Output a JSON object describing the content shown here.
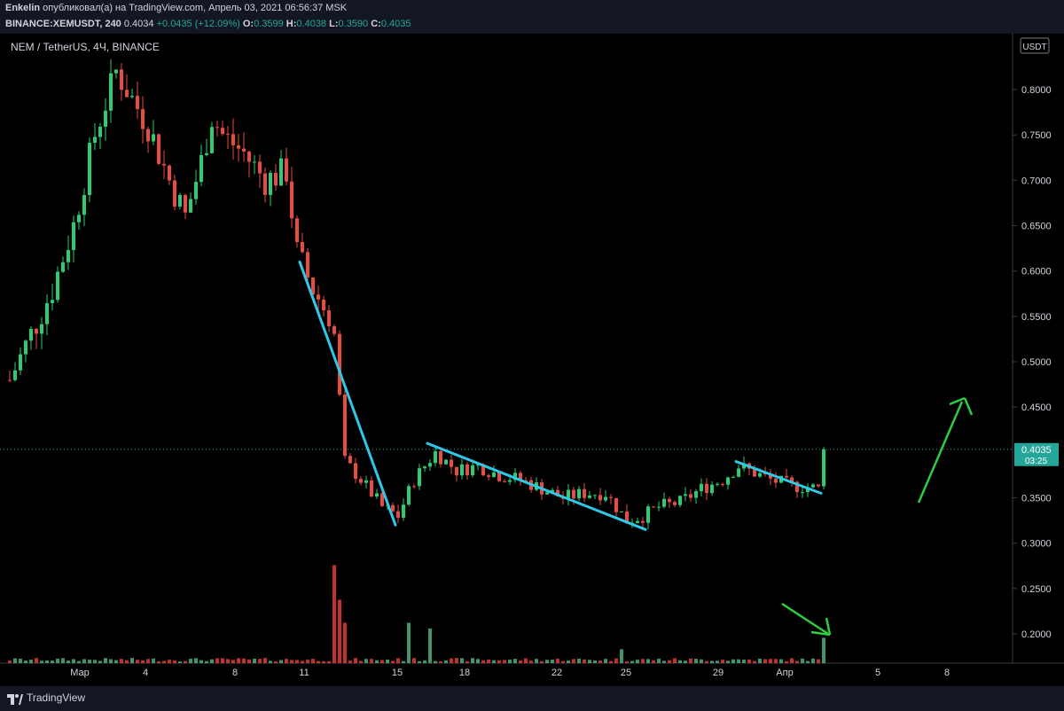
{
  "header": {
    "line1_user": "Enkelin",
    "line1_text": " опубликовал(а) на TradingView.com, Апрель 03, 2021 06:56:37 MSK",
    "symbol": "BINANCE:XEMUSDT, 240",
    "last": "0.4034",
    "change": "+0.0435 (+12.09%)",
    "o_label": "O:",
    "o_value": "0.3599",
    "h_label": "H:",
    "h_value": "0.4038",
    "l_label": "L:",
    "l_value": "0.3590",
    "c_label": "C:",
    "c_value": "0.4035"
  },
  "chart_data": {
    "type": "candlestick",
    "title": "NEM / TetherUS, 4Ч, BINANCE",
    "currency": "USDT",
    "ylim": [
      0.17,
      0.86
    ],
    "y_ticks": [
      "0.8000",
      "0.7500",
      "0.7000",
      "0.6500",
      "0.6000",
      "0.5500",
      "0.5000",
      "0.4500",
      "0.3500",
      "0.3000",
      "0.2500",
      "0.2000"
    ],
    "x_ticks": [
      "Мар",
      "4",
      "8",
      "11",
      "15",
      "18",
      "22",
      "25",
      "29",
      "Апр",
      "5",
      "8"
    ],
    "current_price": "0.4035",
    "countdown": "03:25",
    "price_path": [
      [
        0,
        0.48
      ],
      [
        4,
        0.53
      ],
      [
        8,
        0.58
      ],
      [
        12,
        0.65
      ],
      [
        16,
        0.75
      ],
      [
        20,
        0.82
      ],
      [
        22,
        0.8
      ],
      [
        26,
        0.76
      ],
      [
        30,
        0.7
      ],
      [
        33,
        0.66
      ],
      [
        36,
        0.72
      ],
      [
        38,
        0.77
      ],
      [
        40,
        0.75
      ],
      [
        44,
        0.73
      ],
      [
        48,
        0.7
      ],
      [
        52,
        0.71
      ],
      [
        54,
        0.62
      ],
      [
        57,
        0.58
      ],
      [
        59,
        0.56
      ],
      [
        61,
        0.53
      ],
      [
        62,
        0.46
      ],
      [
        63,
        0.39
      ],
      [
        66,
        0.37
      ],
      [
        70,
        0.34
      ],
      [
        73,
        0.33
      ],
      [
        76,
        0.37
      ],
      [
        80,
        0.4
      ],
      [
        84,
        0.38
      ],
      [
        88,
        0.385
      ],
      [
        92,
        0.375
      ],
      [
        96,
        0.37
      ],
      [
        100,
        0.36
      ],
      [
        104,
        0.35
      ],
      [
        108,
        0.355
      ],
      [
        112,
        0.355
      ],
      [
        114,
        0.34
      ],
      [
        116,
        0.325
      ],
      [
        119,
        0.33
      ],
      [
        122,
        0.34
      ],
      [
        126,
        0.345
      ],
      [
        130,
        0.36
      ],
      [
        134,
        0.37
      ],
      [
        137,
        0.385
      ],
      [
        139,
        0.38
      ],
      [
        143,
        0.37
      ],
      [
        147,
        0.363
      ],
      [
        150,
        0.362
      ],
      [
        152,
        0.36
      ],
      [
        153,
        0.4035
      ]
    ],
    "volume_spikes": [
      [
        61,
        0.85
      ],
      [
        62,
        0.55
      ],
      [
        63,
        0.35
      ],
      [
        75,
        0.35
      ],
      [
        79,
        0.3
      ],
      [
        115,
        0.12
      ],
      [
        153,
        0.22
      ]
    ],
    "trendlines": [
      {
        "from": [
          55,
          0.61
        ],
        "to": [
          73,
          0.32
        ]
      },
      {
        "from": [
          79,
          0.41
        ],
        "to": [
          120,
          0.315
        ]
      },
      {
        "from": [
          137,
          0.39
        ],
        "to": [
          153,
          0.355
        ]
      }
    ]
  }
}
